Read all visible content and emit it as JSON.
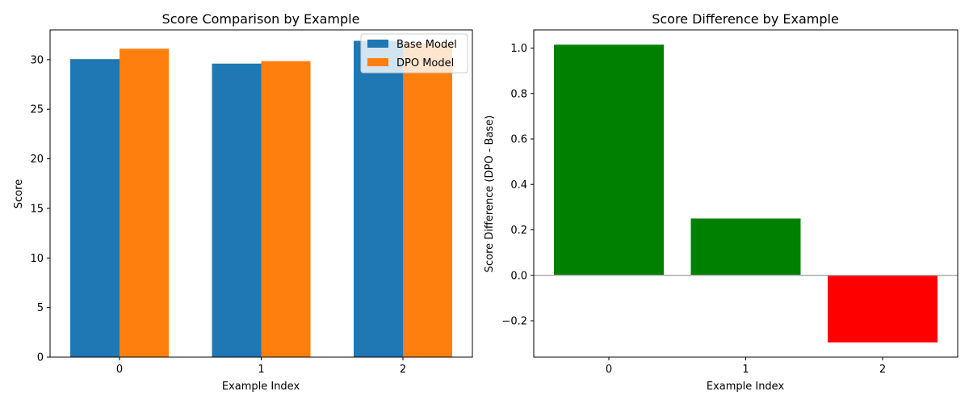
{
  "chart_data": [
    {
      "type": "bar",
      "title": "Score Comparison by Example",
      "xlabel": "Example Index",
      "ylabel": "Score",
      "categories": [
        "0",
        "1",
        "2"
      ],
      "ylim": [
        0,
        33
      ],
      "yticks": [
        0,
        5,
        10,
        15,
        20,
        25,
        30
      ],
      "series": [
        {
          "name": "Base Model",
          "values": [
            30.05,
            29.6,
            31.9
          ],
          "color": "#1f77b4"
        },
        {
          "name": "DPO Model",
          "values": [
            31.1,
            29.85,
            31.6
          ],
          "color": "#ff7f0e"
        }
      ],
      "legend": "top-right",
      "grid": false
    },
    {
      "type": "bar",
      "title": "Score Difference by Example",
      "xlabel": "Example Index",
      "ylabel": "Score Difference (DPO - Base)",
      "categories": [
        "0",
        "1",
        "2"
      ],
      "values": [
        1.015,
        0.25,
        -0.295
      ],
      "colors": [
        "#008000",
        "#008000",
        "#ff0000"
      ],
      "ylim": [
        -0.36,
        1.08
      ],
      "yticks": [
        -0.2,
        0.0,
        0.2,
        0.4,
        0.6,
        0.8,
        1.0
      ],
      "ytick_labels": [
        "−0.2",
        "0.0",
        "0.2",
        "0.4",
        "0.6",
        "0.8",
        "1.0"
      ],
      "zero_line_color": "#aaaaaa",
      "grid": false
    }
  ]
}
